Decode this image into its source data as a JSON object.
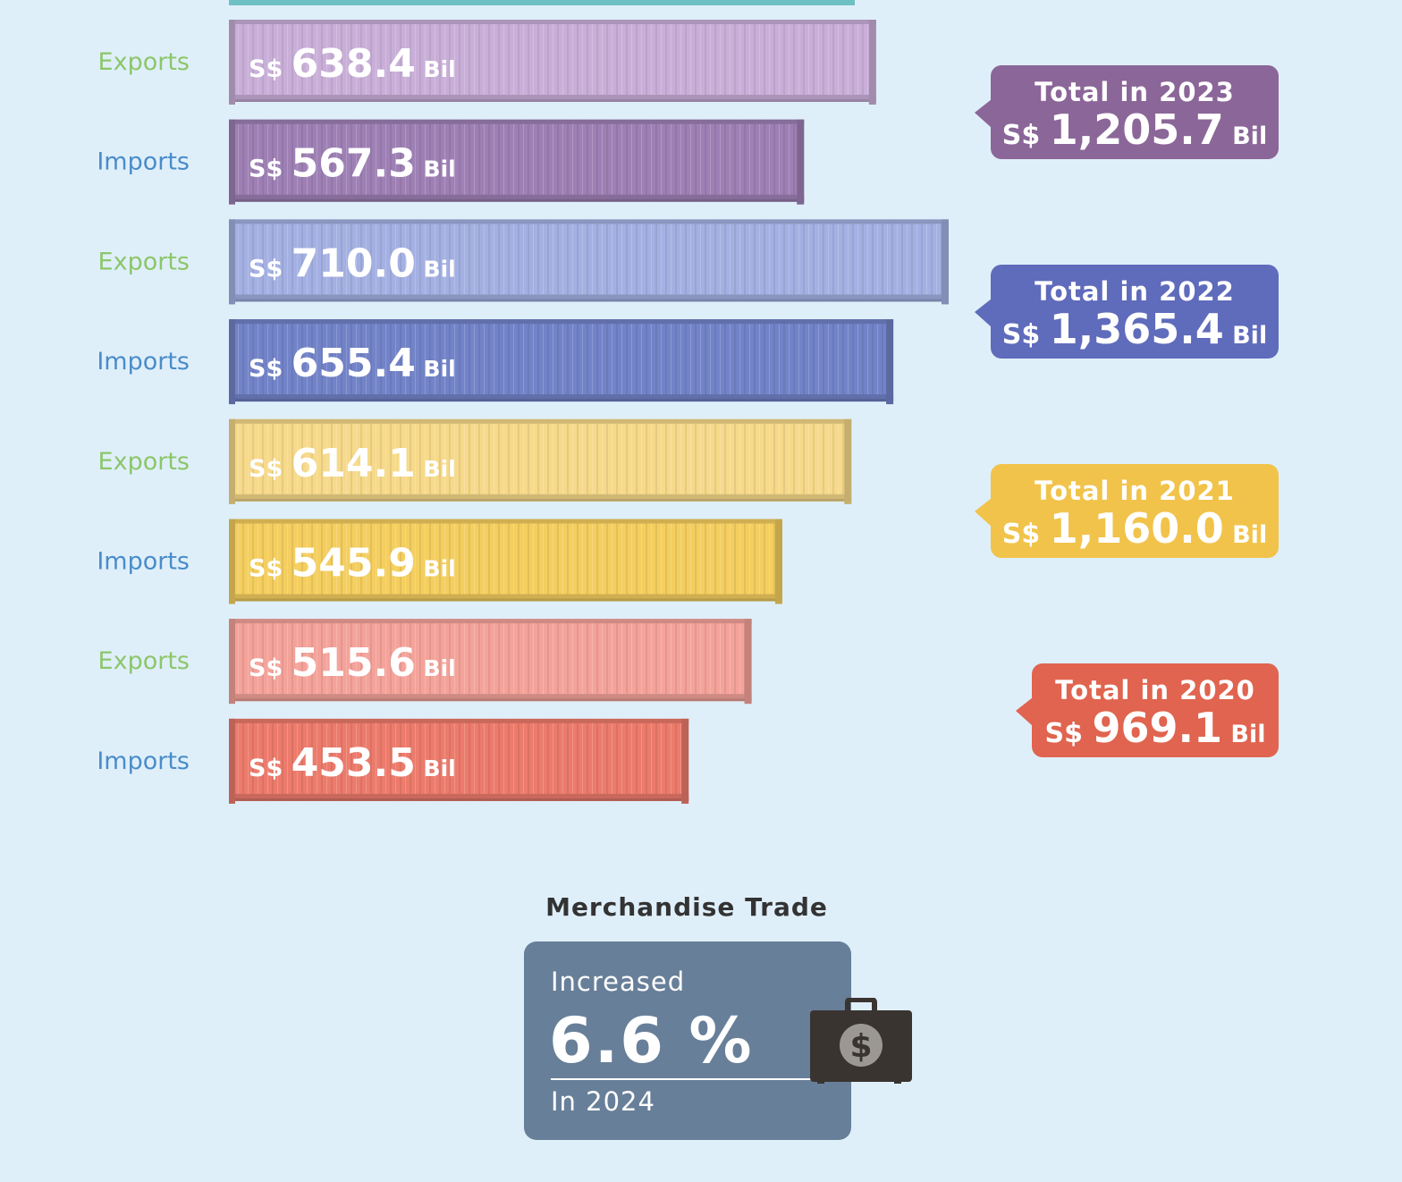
{
  "chart_data": {
    "type": "bar",
    "orientation": "horizontal",
    "currency_prefix": "S$",
    "unit": "Bil",
    "rows": [
      {
        "label": "Exports",
        "year": 2023,
        "value": 638.4,
        "value_label": "638.4"
      },
      {
        "label": "Imports",
        "year": 2023,
        "value": 567.3,
        "value_label": "567.3"
      },
      {
        "label": "Exports",
        "year": 2022,
        "value": 710.0,
        "value_label": "710.0"
      },
      {
        "label": "Imports",
        "year": 2022,
        "value": 655.4,
        "value_label": "655.4"
      },
      {
        "label": "Exports",
        "year": 2021,
        "value": 614.1,
        "value_label": "614.1"
      },
      {
        "label": "Imports",
        "year": 2021,
        "value": 545.9,
        "value_label": "545.9"
      },
      {
        "label": "Exports",
        "year": 2020,
        "value": 515.6,
        "value_label": "515.6"
      },
      {
        "label": "Imports",
        "year": 2020,
        "value": 453.5,
        "value_label": "453.5"
      }
    ],
    "totals": [
      {
        "title": "Total in 2023",
        "value_label": "1,205.7",
        "year": 2023
      },
      {
        "title": "Total in 2022",
        "value_label": "1,365.4",
        "year": 2022
      },
      {
        "title": "Total in 2021",
        "value_label": "1,160.0",
        "year": 2021
      },
      {
        "title": "Total in 2020",
        "value_label": "969.1",
        "year": 2020
      }
    ],
    "year_colors": {
      "2023": {
        "exports": "#c9afd8",
        "imports": "#9e80b5",
        "badge": "#8b6698"
      },
      "2022": {
        "exports": "#a4b0e2",
        "imports": "#7283c8",
        "badge": "#5f6bbb"
      },
      "2021": {
        "exports": "#f6d98a",
        "imports": "#f4ce5f",
        "badge": "#f1c34a"
      },
      "2020": {
        "exports": "#f4a39a",
        "imports": "#ec7b6c",
        "badge": "#e0644f"
      }
    },
    "label_colors": {
      "exports": "#8cc66a",
      "imports": "#4a8cc8"
    },
    "legend": "none",
    "grid": false
  },
  "summary": {
    "heading": "Merchandise Trade",
    "label": "Increased",
    "value": "6.6 %",
    "year_text": "In 2024",
    "card_color": "#687f99",
    "icon": "briefcase-dollar-icon"
  }
}
